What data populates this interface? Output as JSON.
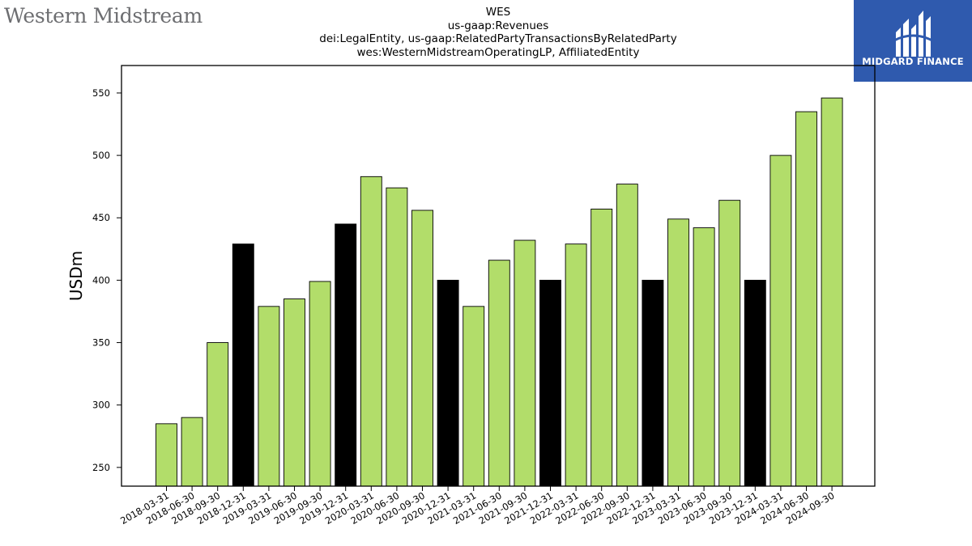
{
  "branding": {
    "left_logo_text": "Western Midstream",
    "right_logo_text": "MIDGARD FINANCE"
  },
  "colors": {
    "bar_quarter": "#b2dd6a",
    "bar_year_end": "#000000",
    "right_logo_bg": "#2f5aae"
  },
  "chart_data": {
    "type": "bar",
    "title_lines": [
      "WES",
      "us-gaap:Revenues",
      "dei:LegalEntity, us-gaap:RelatedPartyTransactionsByRelatedParty",
      "wes:WesternMidstreamOperatingLP, AffiliatedEntity"
    ],
    "xlabel": "",
    "ylabel": "USDm",
    "ylim": [
      235,
      572
    ],
    "yticks": [
      250,
      300,
      350,
      400,
      450,
      500,
      550
    ],
    "grid": false,
    "categories": [
      "2018-03-31",
      "2018-06-30",
      "2018-09-30",
      "2018-12-31",
      "2019-03-31",
      "2019-06-30",
      "2019-09-30",
      "2019-12-31",
      "2020-03-31",
      "2020-06-30",
      "2020-09-30",
      "2020-12-31",
      "2021-03-31",
      "2021-06-30",
      "2021-09-30",
      "2021-12-31",
      "2022-03-31",
      "2022-06-30",
      "2022-09-30",
      "2022-12-31",
      "2023-03-31",
      "2023-06-30",
      "2023-09-30",
      "2023-12-31",
      "2024-03-31",
      "2024-06-30",
      "2024-09-30"
    ],
    "values": [
      285,
      290,
      350,
      429,
      379,
      385,
      399,
      445,
      483,
      474,
      456,
      400,
      379,
      416,
      432,
      400,
      429,
      457,
      477,
      400,
      449,
      442,
      464,
      400,
      500,
      535,
      546
    ],
    "year_end": [
      false,
      false,
      false,
      true,
      false,
      false,
      false,
      true,
      false,
      false,
      false,
      true,
      false,
      false,
      false,
      true,
      false,
      false,
      false,
      true,
      false,
      false,
      false,
      true,
      false,
      false,
      false
    ]
  }
}
